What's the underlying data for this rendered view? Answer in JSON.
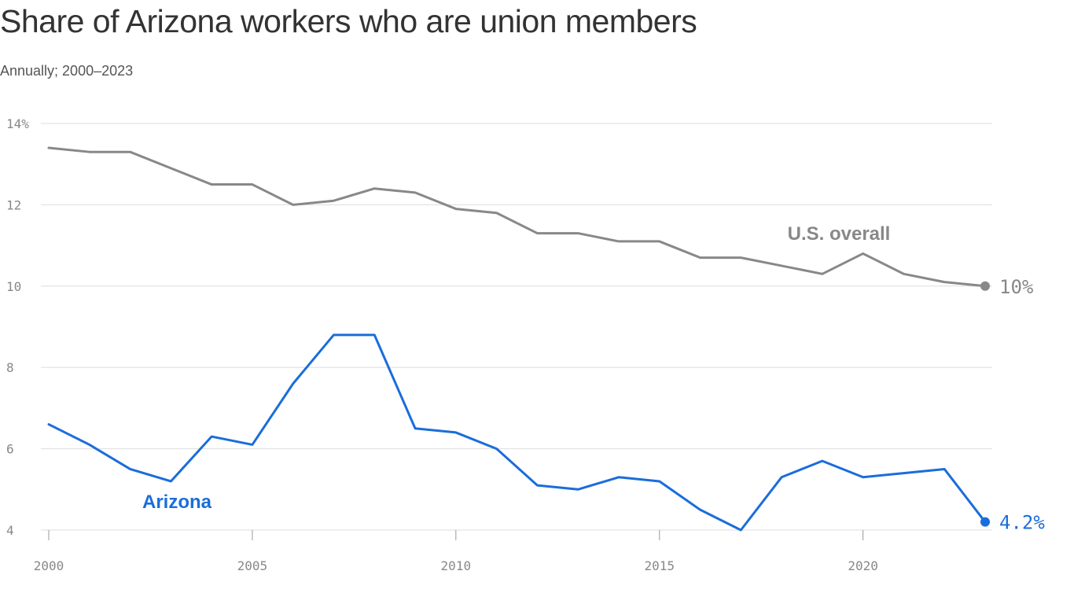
{
  "chart_data": {
    "type": "line",
    "title": "Share of Arizona workers who are union members",
    "subtitle": "Annually; 2000–2023",
    "x": [
      2000,
      2001,
      2002,
      2003,
      2004,
      2005,
      2006,
      2007,
      2008,
      2009,
      2010,
      2011,
      2012,
      2013,
      2014,
      2015,
      2016,
      2017,
      2018,
      2019,
      2020,
      2021,
      2022,
      2023
    ],
    "x_ticks": [
      2000,
      2005,
      2010,
      2015,
      2020
    ],
    "y_ticks": [
      {
        "value": 4,
        "label": "4"
      },
      {
        "value": 6,
        "label": "6"
      },
      {
        "value": 8,
        "label": "8"
      },
      {
        "value": 10,
        "label": "10"
      },
      {
        "value": 12,
        "label": "12"
      },
      {
        "value": 14,
        "label": "14%"
      }
    ],
    "ylim": [
      4,
      14
    ],
    "xlim": [
      2000,
      2023
    ],
    "grid": true,
    "series": [
      {
        "name": "U.S. overall",
        "color": "#888888",
        "end_label": "10%",
        "values": [
          13.4,
          13.3,
          13.3,
          12.9,
          12.5,
          12.5,
          12.0,
          12.1,
          12.4,
          12.3,
          11.9,
          11.8,
          11.3,
          11.3,
          11.1,
          11.1,
          10.7,
          10.7,
          10.5,
          10.3,
          10.8,
          10.3,
          10.1,
          10.0
        ]
      },
      {
        "name": "Arizona",
        "color": "#1a6ddb",
        "end_label": "4.2%",
        "values": [
          6.6,
          6.1,
          5.5,
          5.2,
          6.3,
          6.1,
          7.6,
          8.8,
          8.8,
          6.5,
          6.4,
          6.0,
          5.1,
          5.0,
          5.3,
          5.2,
          4.5,
          4.0,
          5.3,
          5.7,
          5.3,
          5.4,
          5.5,
          4.2
        ]
      }
    ]
  }
}
